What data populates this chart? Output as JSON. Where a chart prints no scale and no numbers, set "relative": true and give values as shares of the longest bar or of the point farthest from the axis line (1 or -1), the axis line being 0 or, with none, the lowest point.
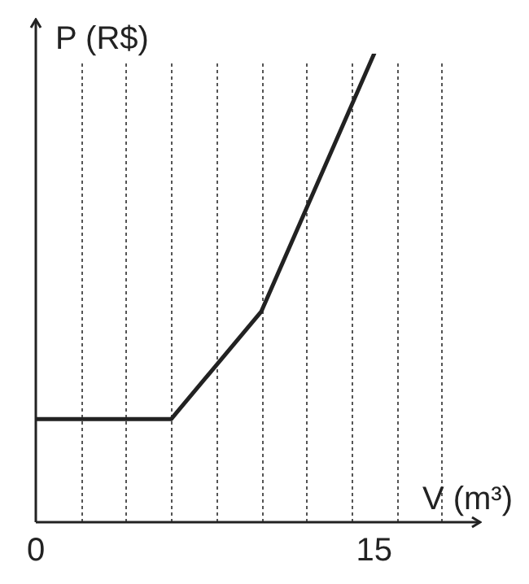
{
  "chart_data": {
    "type": "line",
    "relative": true,
    "xlabel": "V (m³)",
    "ylabel": "P (R$)",
    "x": [
      0,
      6,
      10,
      15
    ],
    "series": [
      {
        "color": "#222222",
        "values": [
          0.22,
          0.22,
          0.45,
          1
        ]
      }
    ],
    "xlim": [
      0,
      19.7
    ],
    "xticks": [
      0,
      {
        "value": 2,
        "label": null
      },
      {
        "value": 4,
        "label": null
      },
      {
        "value": 6,
        "label": null
      },
      {
        "value": 8,
        "label": null
      },
      {
        "value": 10,
        "label": null
      },
      {
        "value": 12,
        "label": null
      },
      {
        "value": 14,
        "label": null
      },
      15,
      {
        "value": 16,
        "label": null
      },
      {
        "value": 18,
        "label": null
      }
    ],
    "grid": "x",
    "marker": "none",
    "line_style": "solid",
    "legend": false
  }
}
